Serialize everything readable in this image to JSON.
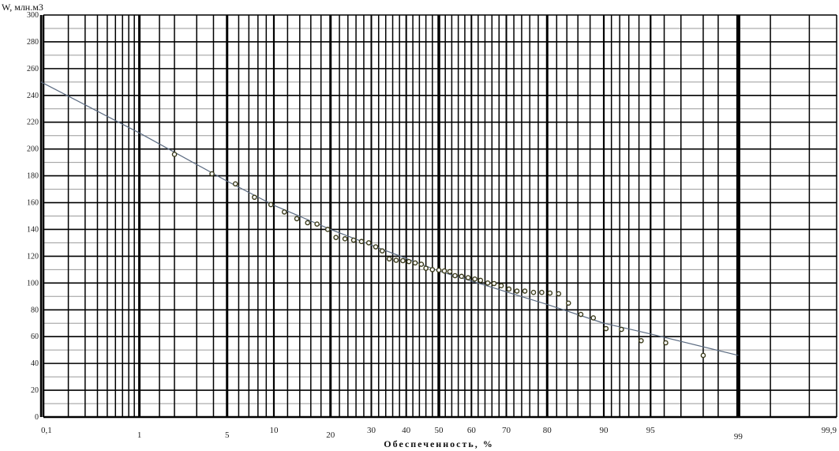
{
  "chart_data": {
    "type": "scatter",
    "x_scale": "normal-probability",
    "title": "",
    "xlabel": "Обеспеченность, %",
    "ylabel": "W, млн.м3",
    "ylim": [
      0,
      300
    ],
    "xlim": [
      0.1,
      99.9
    ],
    "grid": true,
    "y_ticks": [
      0,
      20,
      40,
      60,
      80,
      100,
      120,
      140,
      160,
      180,
      200,
      220,
      240,
      260,
      280,
      300
    ],
    "x_ticks": [
      {
        "value": 0.1,
        "label": "0,1"
      },
      {
        "value": 1,
        "label": "1"
      },
      {
        "value": 5,
        "label": "5"
      },
      {
        "value": 10,
        "label": "10"
      },
      {
        "value": 20,
        "label": "20"
      },
      {
        "value": 30,
        "label": "30"
      },
      {
        "value": 40,
        "label": "40"
      },
      {
        "value": 50,
        "label": "50"
      },
      {
        "value": 60,
        "label": "60"
      },
      {
        "value": 70,
        "label": "70"
      },
      {
        "value": 80,
        "label": "80"
      },
      {
        "value": 90,
        "label": "90"
      },
      {
        "value": 95,
        "label": "95"
      },
      {
        "value": 99,
        "label": "99"
      },
      {
        "value": 99.9,
        "label": "99,9"
      }
    ],
    "points": {
      "x": [
        2.0,
        3.9,
        5.7,
        7.6,
        9.6,
        11.5,
        13.5,
        15.4,
        17.2,
        19.4,
        21.2,
        23.3,
        25.4,
        27.4,
        29.3,
        31.2,
        33,
        35,
        37,
        39,
        40.8,
        42.7,
        44.6,
        46,
        48,
        50,
        51.7,
        53.4,
        55,
        57,
        59,
        61,
        62.7,
        64.8,
        66.6,
        68.6,
        70.7,
        72.8,
        74.8,
        76.9,
        78.8,
        80.6,
        82.4,
        84.3,
        86.5,
        88.5,
        90.3,
        92.2,
        94.2,
        96.1,
        98
      ],
      "y": [
        196,
        181.5,
        174,
        164,
        158.5,
        153,
        148,
        145,
        144,
        140,
        134,
        133,
        132,
        131,
        130,
        127,
        124,
        118,
        117,
        116.7,
        116,
        115,
        114,
        111,
        110,
        109.6,
        109,
        108.5,
        105.5,
        105,
        104,
        103,
        102,
        100,
        99.6,
        98,
        95.5,
        94,
        94,
        93,
        93,
        92.5,
        92,
        85,
        76.6,
        74,
        66,
        65.4,
        57,
        55.4,
        46
      ]
    },
    "fit_line": {
      "x": [
        0.1,
        1,
        5,
        10,
        20,
        50,
        80,
        90,
        95,
        99
      ],
      "y": [
        250,
        212,
        176,
        158,
        140,
        109,
        84,
        70,
        62,
        46
      ]
    },
    "colors": {
      "grid_major": "#000000",
      "grid_minor": "#9a9a9a",
      "points": "#3a3a1a",
      "fit_line": "#5a6a80"
    }
  }
}
